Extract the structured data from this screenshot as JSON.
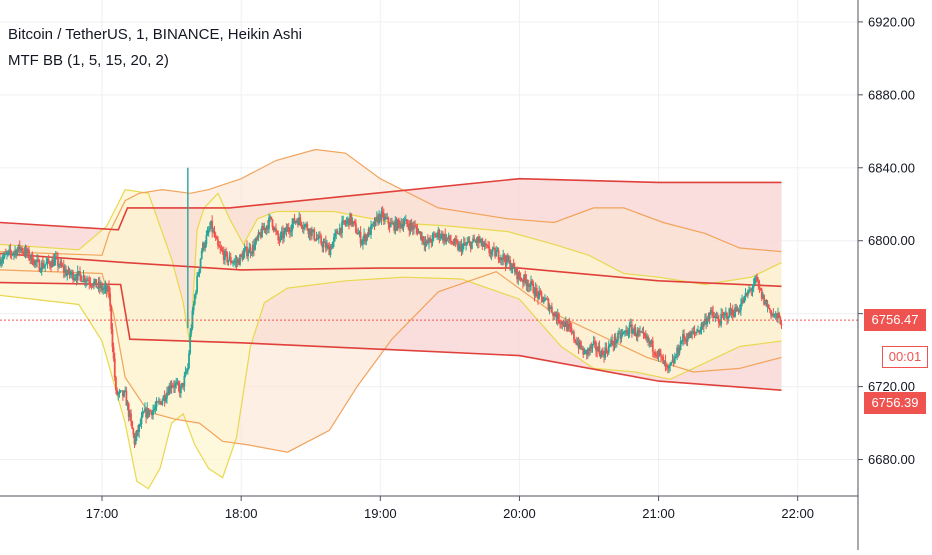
{
  "header": {
    "title": "Bitcoin / TetherUS, 1, BINANCE, Heikin Ashi",
    "indicator": "MTF BB (1, 5, 15, 20, 2)"
  },
  "price_tags": {
    "last_price": "6756.47",
    "countdown": "00:01",
    "lower_price": "6756.39"
  },
  "colors": {
    "up": "#26a69a",
    "down": "#ef5350",
    "bb_red": "#e0403a",
    "bb_orange": "#f2a35c",
    "bb_yellow": "#e8d850",
    "fill_red": "#f8d6d4",
    "fill_orange": "#fbe5d2",
    "fill_yellow": "#fdf6d2",
    "price_line": "#ef5350",
    "grid": "#eef0f3"
  },
  "chart_data": {
    "type": "candlestick",
    "title": "Bitcoin / TetherUS, 1, BINANCE, Heikin Ashi",
    "indicator": "MTF BB (1, 5, 15, 20, 2)",
    "x_ticks": [
      "17:00",
      "18:00",
      "19:00",
      "20:00",
      "21:00",
      "22:00"
    ],
    "x_tick_minutes": [
      1020,
      1080,
      1140,
      1200,
      1260,
      1320
    ],
    "y_ticks": [
      "6680.00",
      "6720.00",
      "6760.00",
      "6800.00",
      "6840.00",
      "6880.00",
      "6920.00"
    ],
    "xlim_minutes": [
      976,
      1346
    ],
    "ylim": [
      6660,
      6932
    ],
    "last_price": 6756.47,
    "price_path": [
      [
        976,
        6790
      ],
      [
        985,
        6796
      ],
      [
        993,
        6786
      ],
      [
        1000,
        6789
      ],
      [
        1005,
        6782
      ],
      [
        1012,
        6780
      ],
      [
        1015,
        6778
      ],
      [
        1018,
        6775
      ],
      [
        1023,
        6772
      ],
      [
        1026,
        6716
      ],
      [
        1030,
        6715
      ],
      [
        1034,
        6690
      ],
      [
        1038,
        6705
      ],
      [
        1043,
        6708
      ],
      [
        1047,
        6715
      ],
      [
        1050,
        6722
      ],
      [
        1054,
        6718
      ],
      [
        1057,
        6730
      ],
      [
        1058,
        6748
      ],
      [
        1060,
        6770
      ],
      [
        1063,
        6795
      ],
      [
        1067,
        6808
      ],
      [
        1070,
        6796
      ],
      [
        1074,
        6790
      ],
      [
        1078,
        6788
      ],
      [
        1082,
        6794
      ],
      [
        1085,
        6796
      ],
      [
        1089,
        6805
      ],
      [
        1093,
        6812
      ],
      [
        1096,
        6800
      ],
      [
        1100,
        6806
      ],
      [
        1104,
        6812
      ],
      [
        1108,
        6808
      ],
      [
        1112,
        6802
      ],
      [
        1118,
        6795
      ],
      [
        1122,
        6806
      ],
      [
        1127,
        6812
      ],
      [
        1132,
        6800
      ],
      [
        1136,
        6806
      ],
      [
        1140,
        6814
      ],
      [
        1145,
        6808
      ],
      [
        1150,
        6810
      ],
      [
        1156,
        6806
      ],
      [
        1160,
        6798
      ],
      [
        1165,
        6804
      ],
      [
        1170,
        6800
      ],
      [
        1174,
        6796
      ],
      [
        1178,
        6798
      ],
      [
        1182,
        6800
      ],
      [
        1187,
        6794
      ],
      [
        1192,
        6792
      ],
      [
        1196,
        6787
      ],
      [
        1200,
        6780
      ],
      [
        1204,
        6777
      ],
      [
        1208,
        6770
      ],
      [
        1212,
        6766
      ],
      [
        1216,
        6758
      ],
      [
        1220,
        6754
      ],
      [
        1224,
        6746
      ],
      [
        1228,
        6738
      ],
      [
        1232,
        6742
      ],
      [
        1236,
        6738
      ],
      [
        1240,
        6744
      ],
      [
        1244,
        6748
      ],
      [
        1248,
        6752
      ],
      [
        1252,
        6748
      ],
      [
        1256,
        6744
      ],
      [
        1260,
        6738
      ],
      [
        1264,
        6728
      ],
      [
        1267,
        6735
      ],
      [
        1270,
        6746
      ],
      [
        1274,
        6748
      ],
      [
        1278,
        6752
      ],
      [
        1282,
        6760
      ],
      [
        1286,
        6756
      ],
      [
        1290,
        6760
      ],
      [
        1294,
        6762
      ],
      [
        1298,
        6770
      ],
      [
        1302,
        6778
      ],
      [
        1305,
        6768
      ],
      [
        1309,
        6760
      ],
      [
        1313,
        6756
      ]
    ],
    "bands": [
      {
        "name": "tf1_upper",
        "color": "bb_yellow",
        "points": [
          [
            976,
            6798
          ],
          [
            1010,
            6795
          ],
          [
            1022,
            6808
          ],
          [
            1030,
            6828
          ],
          [
            1040,
            6826
          ],
          [
            1045,
            6808
          ],
          [
            1050,
            6790
          ],
          [
            1055,
            6766
          ],
          [
            1058,
            6742
          ],
          [
            1061,
            6806
          ],
          [
            1064,
            6818
          ],
          [
            1070,
            6826
          ],
          [
            1075,
            6812
          ],
          [
            1081,
            6798
          ],
          [
            1087,
            6812
          ],
          [
            1095,
            6816
          ],
          [
            1120,
            6816
          ],
          [
            1145,
            6810
          ],
          [
            1170,
            6808
          ],
          [
            1195,
            6805
          ],
          [
            1215,
            6798
          ],
          [
            1230,
            6792
          ],
          [
            1245,
            6782
          ],
          [
            1260,
            6780
          ],
          [
            1280,
            6776
          ],
          [
            1300,
            6780
          ],
          [
            1313,
            6788
          ]
        ]
      },
      {
        "name": "tf1_lower",
        "color": "bb_yellow",
        "points": [
          [
            976,
            6770
          ],
          [
            1010,
            6765
          ],
          [
            1020,
            6745
          ],
          [
            1030,
            6700
          ],
          [
            1035,
            6668
          ],
          [
            1040,
            6664
          ],
          [
            1045,
            6675
          ],
          [
            1050,
            6700
          ],
          [
            1055,
            6705
          ],
          [
            1060,
            6688
          ],
          [
            1066,
            6675
          ],
          [
            1072,
            6670
          ],
          [
            1078,
            6692
          ],
          [
            1084,
            6742
          ],
          [
            1090,
            6766
          ],
          [
            1100,
            6774
          ],
          [
            1125,
            6778
          ],
          [
            1150,
            6780
          ],
          [
            1175,
            6779
          ],
          [
            1200,
            6768
          ],
          [
            1218,
            6742
          ],
          [
            1232,
            6730
          ],
          [
            1250,
            6728
          ],
          [
            1265,
            6724
          ],
          [
            1280,
            6733
          ],
          [
            1295,
            6742
          ],
          [
            1313,
            6745
          ]
        ]
      },
      {
        "name": "tf2_upper",
        "color": "bb_orange",
        "points": [
          [
            976,
            6794
          ],
          [
            1020,
            6792
          ],
          [
            1023,
            6804
          ],
          [
            1030,
            6822
          ],
          [
            1036,
            6826
          ],
          [
            1046,
            6828
          ],
          [
            1058,
            6826
          ],
          [
            1066,
            6828
          ],
          [
            1080,
            6834
          ],
          [
            1095,
            6844
          ],
          [
            1112,
            6850
          ],
          [
            1125,
            6848
          ],
          [
            1140,
            6834
          ],
          [
            1165,
            6818
          ],
          [
            1195,
            6812
          ],
          [
            1215,
            6810
          ],
          [
            1232,
            6818
          ],
          [
            1245,
            6818
          ],
          [
            1262,
            6810
          ],
          [
            1280,
            6804
          ],
          [
            1295,
            6796
          ],
          [
            1313,
            6794
          ]
        ]
      },
      {
        "name": "tf2_lower",
        "color": "bb_orange",
        "points": [
          [
            976,
            6784
          ],
          [
            1020,
            6782
          ],
          [
            1025,
            6760
          ],
          [
            1030,
            6725
          ],
          [
            1040,
            6706
          ],
          [
            1052,
            6702
          ],
          [
            1062,
            6700
          ],
          [
            1072,
            6690
          ],
          [
            1083,
            6688
          ],
          [
            1100,
            6684
          ],
          [
            1118,
            6696
          ],
          [
            1130,
            6720
          ],
          [
            1145,
            6746
          ],
          [
            1165,
            6772
          ],
          [
            1190,
            6783
          ],
          [
            1215,
            6760
          ],
          [
            1235,
            6748
          ],
          [
            1255,
            6736
          ],
          [
            1275,
            6728
          ],
          [
            1295,
            6730
          ],
          [
            1313,
            6736
          ]
        ]
      },
      {
        "name": "tf3_upper",
        "color": "bb_red",
        "points": [
          [
            976,
            6810
          ],
          [
            1027,
            6806
          ],
          [
            1031,
            6818
          ],
          [
            1075,
            6818
          ],
          [
            1200,
            6834
          ],
          [
            1260,
            6832
          ],
          [
            1313,
            6832
          ]
        ]
      },
      {
        "name": "tf3_lower",
        "color": "bb_red",
        "points": [
          [
            976,
            6777
          ],
          [
            1028,
            6776
          ],
          [
            1032,
            6746
          ],
          [
            1080,
            6744
          ],
          [
            1200,
            6737
          ],
          [
            1260,
            6723
          ],
          [
            1313,
            6718
          ]
        ]
      },
      {
        "name": "tf3_basis",
        "color": "bb_red",
        "points": [
          [
            976,
            6793
          ],
          [
            1030,
            6788
          ],
          [
            1080,
            6784
          ],
          [
            1140,
            6785
          ],
          [
            1200,
            6785
          ],
          [
            1260,
            6778
          ],
          [
            1313,
            6775
          ]
        ]
      }
    ]
  }
}
